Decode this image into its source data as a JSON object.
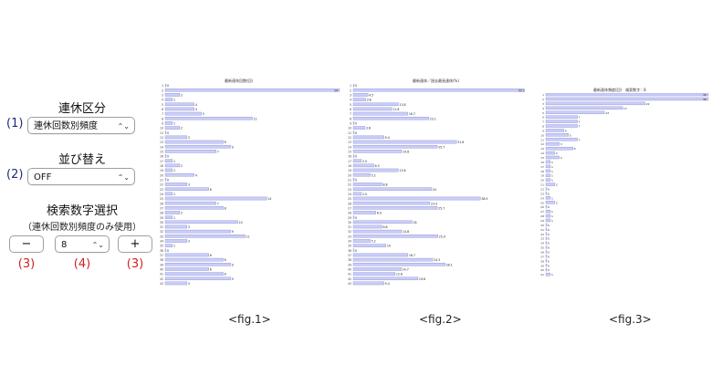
{
  "controls": {
    "section1_heading": "連休区分",
    "section1_index": "(1)",
    "section1_select_value": "連休回数別頻度",
    "section2_heading": "並び替え",
    "section2_index": "(2)",
    "section2_select_value": "OFF",
    "section3_heading": "検索数字選択",
    "section3_note": "（連休回数別頻度のみ使用）",
    "minus_label": "−",
    "plus_label": "+",
    "number_select_value": "8",
    "label_minus": "(3)",
    "label_select": "(4)",
    "label_plus": "(3)"
  },
  "colors": {
    "bar_fill": "#c9cdf7",
    "bar_stroke": "#7077c6",
    "accent_index": "#1f2a7a",
    "accent_red": "#d12020"
  },
  "icons": {
    "select_arrow": "chevron-updown-icon"
  },
  "figures": {
    "fig1_caption": "<fig.1>",
    "fig2_caption": "<fig.2>",
    "fig3_caption": "<fig.3>"
  },
  "chart_data": [
    {
      "type": "bar",
      "orientation": "horizontal",
      "title": "最新連休回数(回)",
      "categories": [
        "1",
        "2",
        "3",
        "4",
        "5",
        "6",
        "7",
        "8",
        "9",
        "10",
        "11",
        "12",
        "13",
        "14",
        "15",
        "16",
        "17",
        "18",
        "19",
        "20",
        "21",
        "22",
        "23",
        "24",
        "25",
        "26",
        "27",
        "28",
        "29",
        "30",
        "31",
        "32",
        "33",
        "34",
        "35",
        "36",
        "37",
        "38",
        "39",
        "40",
        "41",
        "42",
        "43"
      ],
      "values": [
        0,
        24,
        2,
        1,
        4,
        4,
        5,
        12,
        1,
        2,
        0,
        3,
        8,
        9,
        7,
        0,
        1,
        2,
        1,
        4,
        0,
        3,
        6,
        1,
        14,
        7,
        8,
        2,
        1,
        10,
        3,
        9,
        11,
        3,
        1,
        0,
        6,
        8,
        9,
        6,
        8,
        9,
        3
      ],
      "xlim": [
        0,
        24
      ]
    },
    {
      "type": "bar",
      "orientation": "horizontal",
      "title": "最新連休／過去最長連休(%)",
      "categories": [
        "1",
        "2",
        "3",
        "4",
        "5",
        "6",
        "7",
        "8",
        "9",
        "10",
        "11",
        "12",
        "13",
        "14",
        "15",
        "16",
        "17",
        "18",
        "19",
        "20",
        "21",
        "22",
        "23",
        "24",
        "25",
        "26",
        "27",
        "28",
        "29",
        "30",
        "31",
        "32",
        "33",
        "34",
        "35",
        "36",
        "37",
        "38",
        "39",
        "40",
        "41",
        "42",
        "43"
      ],
      "values": [
        0,
        52.2,
        4.5,
        3.8,
        13.8,
        11.8,
        16.7,
        23.1,
        0,
        3.6,
        0,
        9.4,
        31.6,
        25.7,
        14.8,
        0,
        2.5,
        6.3,
        13.8,
        5.2,
        0,
        8.8,
        24.0,
        2.5,
        38.9,
        23.4,
        25.7,
        6.9,
        0,
        18.0,
        8.8,
        14.8,
        25.9,
        5.2,
        10.0,
        0,
        16.7,
        24.3,
        28.1,
        14.7,
        12.8,
        19.8,
        9.4
      ],
      "xlim": [
        0,
        52.2
      ]
    },
    {
      "type": "bar",
      "orientation": "horizontal",
      "title": "最新連休頻度(回)　検索数字：8",
      "categories": [
        "1",
        "2",
        "3",
        "4",
        "5",
        "6",
        "7",
        "8",
        "9",
        "10",
        "11",
        "12",
        "13",
        "14",
        "15",
        "16",
        "17",
        "18",
        "19",
        "20",
        "21",
        "22",
        "23",
        "24",
        "25",
        "26",
        "27",
        "28",
        "29",
        "30",
        "31",
        "32",
        "33",
        "34",
        "35",
        "36",
        "37",
        "38",
        "39",
        "40",
        "41"
      ],
      "values": [
        36,
        36,
        22,
        17,
        13,
        7,
        7,
        7,
        4,
        5,
        7,
        3,
        6,
        2,
        3,
        1,
        1,
        1,
        1,
        1,
        2,
        0,
        0,
        1,
        2,
        0,
        1,
        1,
        1,
        0,
        0,
        0,
        0,
        0,
        0,
        0,
        0,
        0,
        0,
        0,
        1
      ],
      "xlim": [
        0,
        36
      ]
    }
  ]
}
